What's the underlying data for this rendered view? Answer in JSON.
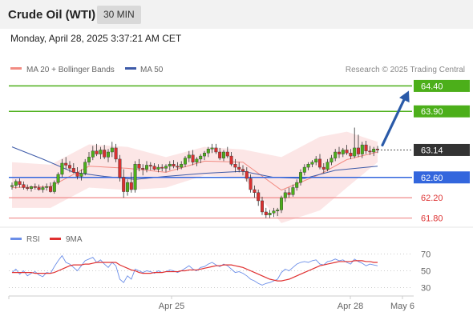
{
  "header": {
    "instrument": "Crude Oil (WTI)",
    "timeframe": "30 MIN",
    "datetime": "Monday, April 28, 2025 3:37:21 AM CET"
  },
  "legend": {
    "ma20_label": "MA 20 + Bollinger Bands",
    "ma50_label": "MA 50",
    "copyright": "Research © 2025 Trading Central",
    "rsi_label": "RSI",
    "rsi_ma_label": "9MA"
  },
  "colors": {
    "green": "#4caf1a",
    "blue": "#3366dd",
    "red": "#ef8a8a",
    "price_tag": "#333333",
    "ma20": "#f28b82",
    "ma50": "#3d5aa8",
    "rsi": "#6b8ee8",
    "rsi_ma": "#e03030",
    "arrow": "#2a5aa8",
    "candle_up": "#4caf1a",
    "candle_down": "#d93030"
  },
  "chart_data": [
    {
      "type": "candlestick",
      "title": "Crude Oil (WTI)",
      "timeframe": "30 MIN",
      "ylim": [
        61.62,
        64.58
      ],
      "levels": [
        {
          "value": 64.4,
          "label": "64.40",
          "kind": "resistance-target"
        },
        {
          "value": 63.9,
          "label": "63.90",
          "kind": "resistance"
        },
        {
          "value": 63.14,
          "label": "63.14",
          "kind": "last-price"
        },
        {
          "value": 62.6,
          "label": "62.60",
          "kind": "pivot"
        },
        {
          "value": 62.2,
          "label": "62.20",
          "kind": "support"
        },
        {
          "value": 61.8,
          "label": "61.80",
          "kind": "support"
        }
      ],
      "x_ticks": [
        "Apr 25",
        "Apr 28",
        "May 6"
      ],
      "projection": {
        "from": 63.14,
        "to": 64.4
      },
      "candles": [
        [
          62.42,
          62.5,
          62.36,
          62.44
        ],
        [
          62.44,
          62.56,
          62.38,
          62.52
        ],
        [
          62.52,
          62.58,
          62.4,
          62.46
        ],
        [
          62.46,
          62.52,
          62.36,
          62.4
        ],
        [
          62.4,
          62.46,
          62.34,
          62.38
        ],
        [
          62.38,
          62.44,
          62.32,
          62.42
        ],
        [
          62.42,
          62.48,
          62.36,
          62.4
        ],
        [
          62.4,
          62.46,
          62.34,
          62.36
        ],
        [
          62.36,
          62.44,
          62.3,
          62.4
        ],
        [
          62.4,
          62.48,
          62.34,
          62.42
        ],
        [
          62.42,
          62.5,
          62.3,
          62.32
        ],
        [
          62.32,
          62.54,
          62.28,
          62.5
        ],
        [
          62.5,
          62.7,
          62.46,
          62.66
        ],
        [
          62.66,
          62.96,
          62.6,
          62.88
        ],
        [
          62.88,
          63.0,
          62.76,
          62.84
        ],
        [
          62.84,
          62.92,
          62.7,
          62.78
        ],
        [
          62.78,
          62.88,
          62.68,
          62.7
        ],
        [
          62.7,
          62.8,
          62.56,
          62.62
        ],
        [
          62.62,
          62.76,
          62.54,
          62.68
        ],
        [
          62.68,
          62.96,
          62.64,
          62.9
        ],
        [
          62.9,
          63.1,
          62.84,
          63.0
        ],
        [
          63.0,
          63.22,
          62.94,
          63.12
        ],
        [
          63.12,
          63.26,
          63.02,
          63.06
        ],
        [
          63.06,
          63.2,
          62.96,
          63.14
        ],
        [
          63.14,
          63.24,
          62.96,
          63.0
        ],
        [
          63.0,
          63.16,
          62.9,
          63.1
        ],
        [
          63.1,
          63.3,
          63.0,
          63.18
        ],
        [
          63.18,
          63.26,
          62.9,
          62.96
        ],
        [
          62.96,
          63.04,
          62.52,
          62.6
        ],
        [
          62.6,
          62.76,
          62.2,
          62.32
        ],
        [
          62.32,
          62.56,
          62.24,
          62.5
        ],
        [
          62.5,
          62.7,
          62.3,
          62.36
        ],
        [
          62.36,
          62.92,
          62.3,
          62.86
        ],
        [
          62.86,
          62.96,
          62.72,
          62.78
        ],
        [
          62.78,
          62.86,
          62.64,
          62.76
        ],
        [
          62.76,
          62.92,
          62.7,
          62.84
        ],
        [
          62.84,
          62.9,
          62.74,
          62.82
        ],
        [
          62.82,
          62.88,
          62.74,
          62.76
        ],
        [
          62.76,
          62.86,
          62.7,
          62.8
        ],
        [
          62.8,
          62.86,
          62.72,
          62.78
        ],
        [
          62.78,
          62.86,
          62.7,
          62.82
        ],
        [
          62.82,
          62.92,
          62.74,
          62.86
        ],
        [
          62.86,
          62.94,
          62.78,
          62.82
        ],
        [
          62.82,
          62.9,
          62.74,
          62.8
        ],
        [
          62.8,
          62.92,
          62.76,
          62.86
        ],
        [
          62.86,
          63.02,
          62.8,
          62.98
        ],
        [
          62.98,
          63.12,
          62.9,
          63.04
        ],
        [
          63.04,
          63.14,
          62.84,
          62.9
        ],
        [
          62.9,
          63.0,
          62.82,
          62.96
        ],
        [
          62.96,
          63.06,
          62.88,
          63.02
        ],
        [
          63.02,
          63.12,
          62.94,
          63.08
        ],
        [
          63.08,
          63.2,
          63.0,
          63.16
        ],
        [
          63.16,
          63.26,
          63.08,
          63.18
        ],
        [
          63.18,
          63.26,
          63.06,
          63.1
        ],
        [
          63.1,
          63.18,
          62.94,
          62.98
        ],
        [
          62.98,
          63.14,
          62.92,
          63.1
        ],
        [
          63.1,
          63.2,
          62.98,
          63.02
        ],
        [
          63.02,
          63.1,
          62.82,
          62.86
        ],
        [
          62.86,
          62.96,
          62.7,
          62.8
        ],
        [
          62.8,
          62.9,
          62.7,
          62.76
        ],
        [
          62.76,
          62.84,
          62.64,
          62.72
        ],
        [
          62.72,
          62.8,
          62.52,
          62.58
        ],
        [
          62.58,
          62.66,
          62.3,
          62.36
        ],
        [
          62.36,
          62.44,
          62.2,
          62.3
        ],
        [
          62.3,
          62.36,
          62.04,
          62.14
        ],
        [
          62.14,
          62.22,
          61.86,
          61.92
        ],
        [
          61.92,
          62.0,
          61.8,
          61.86
        ],
        [
          61.86,
          61.96,
          61.8,
          61.9
        ],
        [
          61.9,
          62.0,
          61.82,
          61.94
        ],
        [
          61.94,
          62.0,
          61.84,
          61.96
        ],
        [
          61.96,
          62.24,
          61.9,
          62.2
        ],
        [
          62.2,
          62.36,
          62.12,
          62.3
        ],
        [
          62.3,
          62.4,
          62.2,
          62.26
        ],
        [
          62.26,
          62.46,
          62.22,
          62.4
        ],
        [
          62.4,
          62.56,
          62.34,
          62.5
        ],
        [
          62.5,
          62.76,
          62.44,
          62.7
        ],
        [
          62.7,
          62.86,
          62.64,
          62.8
        ],
        [
          62.8,
          62.9,
          62.74,
          62.86
        ],
        [
          62.86,
          62.94,
          62.8,
          62.9
        ],
        [
          62.9,
          63.02,
          62.84,
          62.96
        ],
        [
          62.96,
          63.06,
          62.76,
          62.8
        ],
        [
          62.8,
          62.88,
          62.68,
          62.76
        ],
        [
          62.76,
          62.96,
          62.72,
          62.9
        ],
        [
          62.9,
          63.04,
          62.84,
          62.98
        ],
        [
          62.98,
          63.16,
          62.92,
          63.1
        ],
        [
          63.1,
          63.2,
          62.98,
          63.06
        ],
        [
          63.06,
          63.18,
          63.0,
          63.14
        ],
        [
          63.14,
          63.24,
          63.04,
          63.08
        ],
        [
          63.08,
          63.16,
          62.96,
          63.02
        ],
        [
          63.02,
          63.58,
          62.98,
          63.18
        ],
        [
          63.18,
          63.44,
          63.0,
          63.06
        ],
        [
          63.06,
          63.3,
          62.98,
          63.24
        ],
        [
          63.24,
          63.32,
          63.06,
          63.12
        ],
        [
          63.12,
          63.22,
          63.04,
          63.1
        ],
        [
          63.1,
          63.2,
          63.02,
          63.16
        ],
        [
          63.16,
          63.22,
          63.08,
          63.14
        ]
      ],
      "bollinger": {
        "upper": [
          [
            0,
            62.9
          ],
          [
            10,
            62.85
          ],
          [
            20,
            63.25
          ],
          [
            30,
            63.2
          ],
          [
            40,
            63.0
          ],
          [
            50,
            63.2
          ],
          [
            60,
            63.15
          ],
          [
            70,
            63.0
          ],
          [
            80,
            63.4
          ],
          [
            87,
            63.5
          ],
          [
            95,
            63.3
          ]
        ],
        "middle": [
          [
            0,
            62.4
          ],
          [
            10,
            62.42
          ],
          [
            20,
            62.82
          ],
          [
            30,
            62.78
          ],
          [
            40,
            62.7
          ],
          [
            50,
            62.92
          ],
          [
            60,
            62.9
          ],
          [
            70,
            62.35
          ],
          [
            80,
            62.66
          ],
          [
            87,
            62.95
          ],
          [
            95,
            63.1
          ]
        ],
        "lower": [
          [
            0,
            62.0
          ],
          [
            10,
            62.0
          ],
          [
            20,
            62.4
          ],
          [
            30,
            62.35
          ],
          [
            40,
            62.4
          ],
          [
            50,
            62.64
          ],
          [
            60,
            62.6
          ],
          [
            70,
            61.7
          ],
          [
            80,
            61.95
          ],
          [
            87,
            62.4
          ],
          [
            95,
            62.9
          ]
        ]
      },
      "ma50": [
        [
          0,
          63.2
        ],
        [
          8,
          62.96
        ],
        [
          16,
          62.7
        ],
        [
          24,
          62.62
        ],
        [
          32,
          62.56
        ],
        [
          40,
          62.62
        ],
        [
          50,
          62.68
        ],
        [
          60,
          62.72
        ],
        [
          68,
          62.6
        ],
        [
          76,
          62.58
        ],
        [
          84,
          62.74
        ],
        [
          95,
          62.82
        ]
      ]
    },
    {
      "type": "line",
      "title": "RSI",
      "ylim": [
        20,
        80
      ],
      "yticks": [
        30,
        50,
        70
      ],
      "series": [
        {
          "name": "RSI",
          "values": [
            48,
            52,
            46,
            50,
            44,
            47,
            49,
            45,
            43,
            48,
            47,
            55,
            62,
            68,
            60,
            58,
            54,
            50,
            56,
            62,
            64,
            66,
            60,
            63,
            58,
            54,
            60,
            56,
            40,
            36,
            44,
            40,
            52,
            50,
            48,
            50,
            49,
            47,
            50,
            48,
            49,
            51,
            50,
            48,
            50,
            53,
            56,
            52,
            50,
            54,
            55,
            58,
            60,
            57,
            55,
            58,
            56,
            52,
            48,
            49,
            47,
            44,
            40,
            38,
            35,
            33,
            35,
            36,
            38,
            40,
            48,
            52,
            50,
            54,
            58,
            60,
            61,
            60,
            62,
            63,
            58,
            57,
            61,
            62,
            64,
            62,
            63,
            60,
            58,
            64,
            61,
            59,
            56,
            58,
            57,
            56
          ]
        },
        {
          "name": "9MA",
          "values": [
            48,
            48,
            48,
            48,
            48,
            48,
            47,
            47,
            47,
            47,
            47,
            48,
            50,
            52,
            54,
            56,
            57,
            57,
            57,
            58,
            58,
            59,
            60,
            60,
            60,
            60,
            60,
            60,
            57,
            55,
            53,
            51,
            50,
            48,
            47,
            47,
            47,
            48,
            48,
            48,
            49,
            49,
            49,
            49,
            50,
            50,
            51,
            51,
            51,
            52,
            53,
            54,
            55,
            56,
            56,
            57,
            57,
            57,
            56,
            55,
            54,
            52,
            50,
            48,
            46,
            44,
            42,
            40,
            39,
            38,
            38,
            39,
            40,
            42,
            44,
            46,
            48,
            50,
            52,
            54,
            56,
            57,
            58,
            59,
            60,
            61,
            61,
            61,
            61,
            62,
            62,
            62,
            61,
            61,
            60,
            60
          ]
        }
      ]
    }
  ]
}
